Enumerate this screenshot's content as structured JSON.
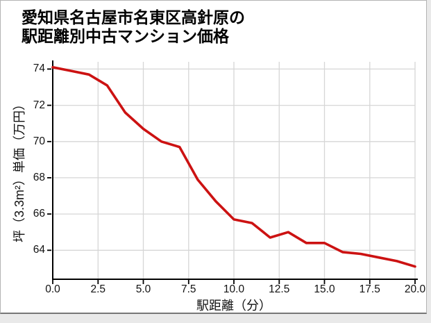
{
  "title": {
    "line1": "愛知県名古屋市名東区高針原の",
    "line2": "駅距離別中古マンション価格"
  },
  "chart_data": {
    "type": "line",
    "title": "愛知県名古屋市名東区高針原の駅距離別中古マンション価格",
    "xlabel": "駅距離（分）",
    "ylabel": "坪（3.3m²）単価（万円）",
    "x": [
      0,
      1,
      2,
      3,
      4,
      5,
      6,
      7,
      8,
      9,
      10,
      11,
      12,
      13,
      14,
      15,
      16,
      17,
      18,
      19,
      20
    ],
    "values": [
      74.1,
      73.9,
      73.7,
      73.1,
      71.6,
      70.7,
      70.0,
      69.7,
      67.9,
      66.7,
      65.7,
      65.5,
      64.7,
      65.0,
      64.4,
      64.4,
      63.9,
      63.8,
      63.6,
      63.4,
      63.1
    ],
    "xlim": [
      0,
      20
    ],
    "ylim": [
      62.4,
      74.4
    ],
    "xticks": [
      0,
      2.5,
      5,
      7.5,
      10,
      12.5,
      15,
      17.5,
      20
    ],
    "xtick_labels": [
      "0.0",
      "2.5",
      "5.0",
      "7.5",
      "10.0",
      "12.5",
      "15.0",
      "17.5",
      "20.0"
    ],
    "yticks": [
      64,
      66,
      68,
      70,
      72,
      74
    ],
    "ytick_labels": [
      "64",
      "66",
      "68",
      "70",
      "72",
      "74"
    ],
    "grid": true,
    "legend": "none",
    "line_color": "#cc1212"
  },
  "colors": {
    "line": "#cc1212",
    "grid": "#d6d6d6",
    "axis": "#000000",
    "text": "#111111",
    "card_background": "#ffffff",
    "card_border": "#b3b3b3",
    "page_background": "#e9e9e9"
  }
}
